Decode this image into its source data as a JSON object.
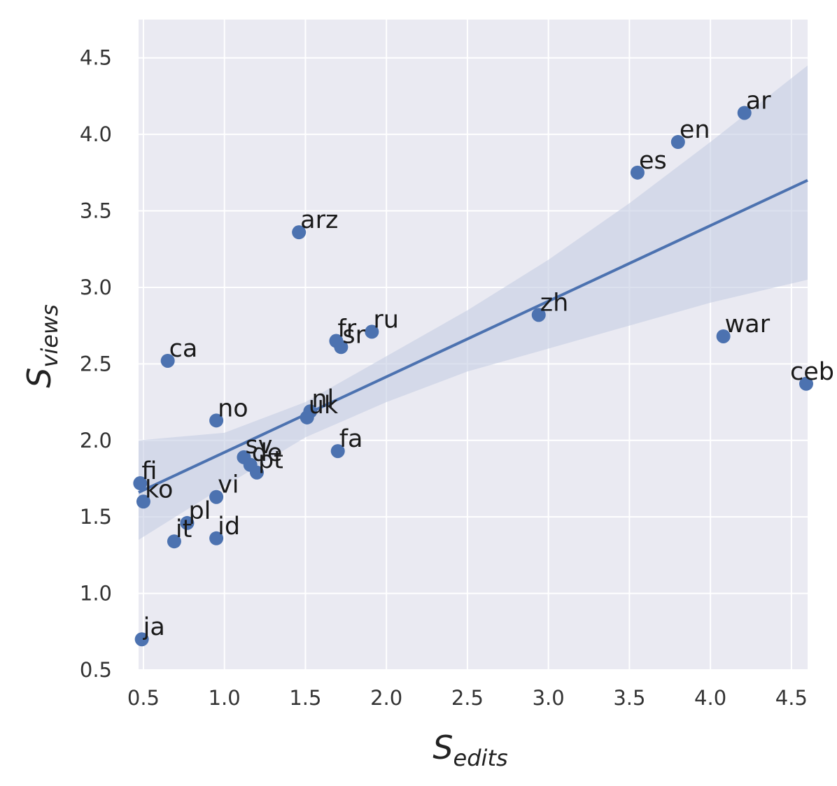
{
  "chart_data": {
    "type": "scatter",
    "xlabel": {
      "base": "S",
      "sub": "edits"
    },
    "ylabel": {
      "base": "S",
      "sub": "views"
    },
    "xlim": [
      0.47,
      4.6
    ],
    "ylim": [
      0.5,
      4.75
    ],
    "xticks": [
      "0.5",
      "1.0",
      "1.5",
      "2.0",
      "2.5",
      "3.0",
      "3.5",
      "4.0",
      "4.5"
    ],
    "yticks": [
      "0.5",
      "1.0",
      "1.5",
      "2.0",
      "2.5",
      "3.0",
      "3.5",
      "4.0",
      "4.5"
    ],
    "grid": true,
    "background": "#eaeaf2",
    "point_color": "#4c72b0",
    "band_color": "#c5cde3",
    "points": [
      {
        "label": "ar",
        "x": 4.21,
        "y": 4.14
      },
      {
        "label": "en",
        "x": 3.8,
        "y": 3.95
      },
      {
        "label": "es",
        "x": 3.55,
        "y": 3.75
      },
      {
        "label": "arz",
        "x": 1.46,
        "y": 3.36
      },
      {
        "label": "zh",
        "x": 2.94,
        "y": 2.82
      },
      {
        "label": "war",
        "x": 4.08,
        "y": 2.68
      },
      {
        "label": "ceb",
        "x": 4.6,
        "y": 2.37
      },
      {
        "label": "ru",
        "x": 1.91,
        "y": 2.71
      },
      {
        "label": "fr",
        "x": 1.69,
        "y": 2.65
      },
      {
        "label": "sr",
        "x": 1.72,
        "y": 2.61
      },
      {
        "label": "ca",
        "x": 0.65,
        "y": 2.52
      },
      {
        "label": "nl",
        "x": 1.53,
        "y": 2.19
      },
      {
        "label": "uk",
        "x": 1.51,
        "y": 2.15
      },
      {
        "label": "no",
        "x": 0.95,
        "y": 2.13
      },
      {
        "label": "fa",
        "x": 1.7,
        "y": 1.93
      },
      {
        "label": "sv",
        "x": 1.12,
        "y": 1.89
      },
      {
        "label": "de",
        "x": 1.16,
        "y": 1.84
      },
      {
        "label": "pt",
        "x": 1.2,
        "y": 1.79
      },
      {
        "label": "fi",
        "x": 0.48,
        "y": 1.72
      },
      {
        "label": "vi",
        "x": 0.95,
        "y": 1.63
      },
      {
        "label": "ko",
        "x": 0.5,
        "y": 1.6
      },
      {
        "label": "pl",
        "x": 0.77,
        "y": 1.46
      },
      {
        "label": "id",
        "x": 0.95,
        "y": 1.36
      },
      {
        "label": "it",
        "x": 0.69,
        "y": 1.34
      },
      {
        "label": "ja",
        "x": 0.49,
        "y": 0.7
      }
    ],
    "regression": {
      "type": "linear",
      "x": [
        0.47,
        4.6
      ],
      "y": [
        1.66,
        3.7
      ]
    },
    "confidence_band": {
      "x": [
        0.47,
        1.0,
        1.5,
        2.0,
        2.5,
        3.0,
        3.5,
        4.0,
        4.6
      ],
      "upper": [
        2.0,
        2.05,
        2.25,
        2.55,
        2.85,
        3.18,
        3.55,
        3.95,
        4.45
      ],
      "lower": [
        1.35,
        1.7,
        2.02,
        2.25,
        2.45,
        2.6,
        2.75,
        2.9,
        3.05
      ]
    }
  }
}
